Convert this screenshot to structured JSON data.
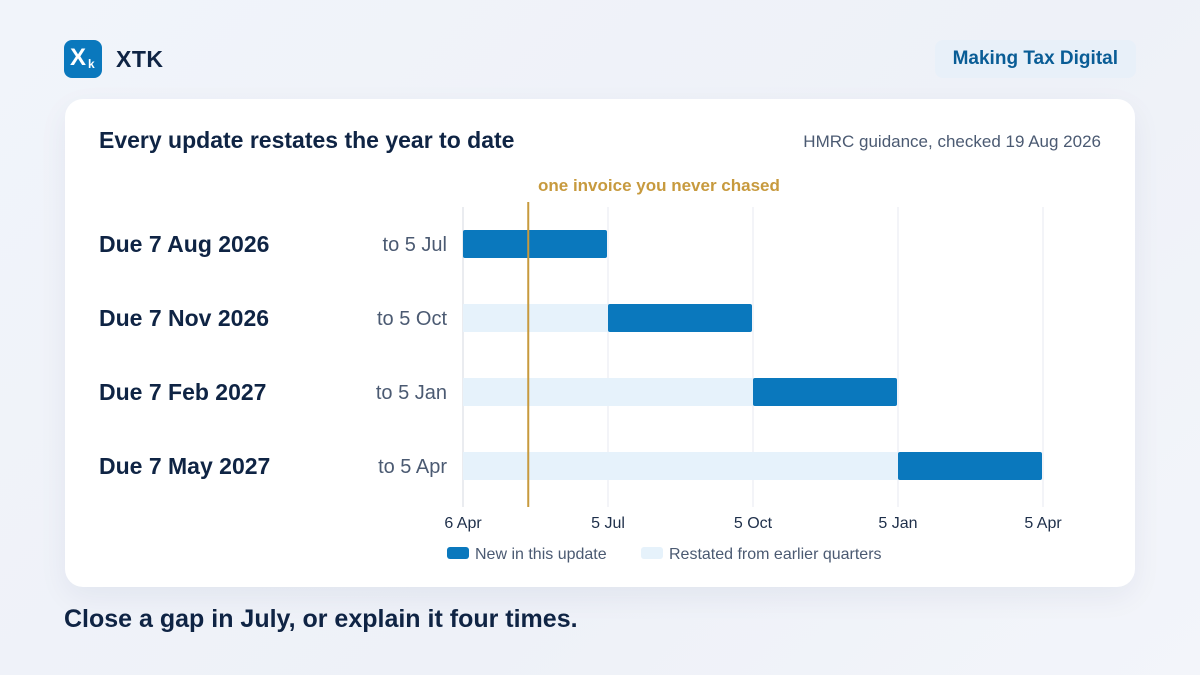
{
  "brand": {
    "name": "XTK",
    "logo_glyph": "X",
    "logo_sub": "k",
    "accent": "#0a78bd"
  },
  "tag": "Making Tax Digital",
  "card": {
    "title": "Every update restates the year to date",
    "source": "HMRC guidance, checked 19 Aug 2026"
  },
  "tagline": "Close a gap in July, or explain it four times.",
  "chart_data": {
    "type": "bar",
    "orientation": "horizontal-stacked",
    "x_ticks": [
      "6 Apr",
      "5 Jul",
      "5 Oct",
      "5 Jan",
      "5 Apr"
    ],
    "rows": [
      {
        "label": "Due 7 Aug 2026",
        "period": "to 5 Jul",
        "restated_quarters": 0,
        "new_quarters": 1
      },
      {
        "label": "Due 7 Nov 2026",
        "period": "to 5 Oct",
        "restated_quarters": 1,
        "new_quarters": 1
      },
      {
        "label": "Due 7 Feb 2027",
        "period": "to 5 Jan",
        "restated_quarters": 2,
        "new_quarters": 1
      },
      {
        "label": "Due 7 May 2027",
        "period": "to 5 Apr",
        "restated_quarters": 3,
        "new_quarters": 1
      }
    ],
    "series": [
      {
        "name": "New in this update",
        "color": "#0a78bd"
      },
      {
        "name": "Restated from earlier quarters",
        "color": "#e6f2fb"
      }
    ],
    "annotation": {
      "text": "one invoice you never chased",
      "x_quarters": 0.45,
      "color": "#c79a3e"
    },
    "grid": true,
    "legend": "bottom-center"
  }
}
